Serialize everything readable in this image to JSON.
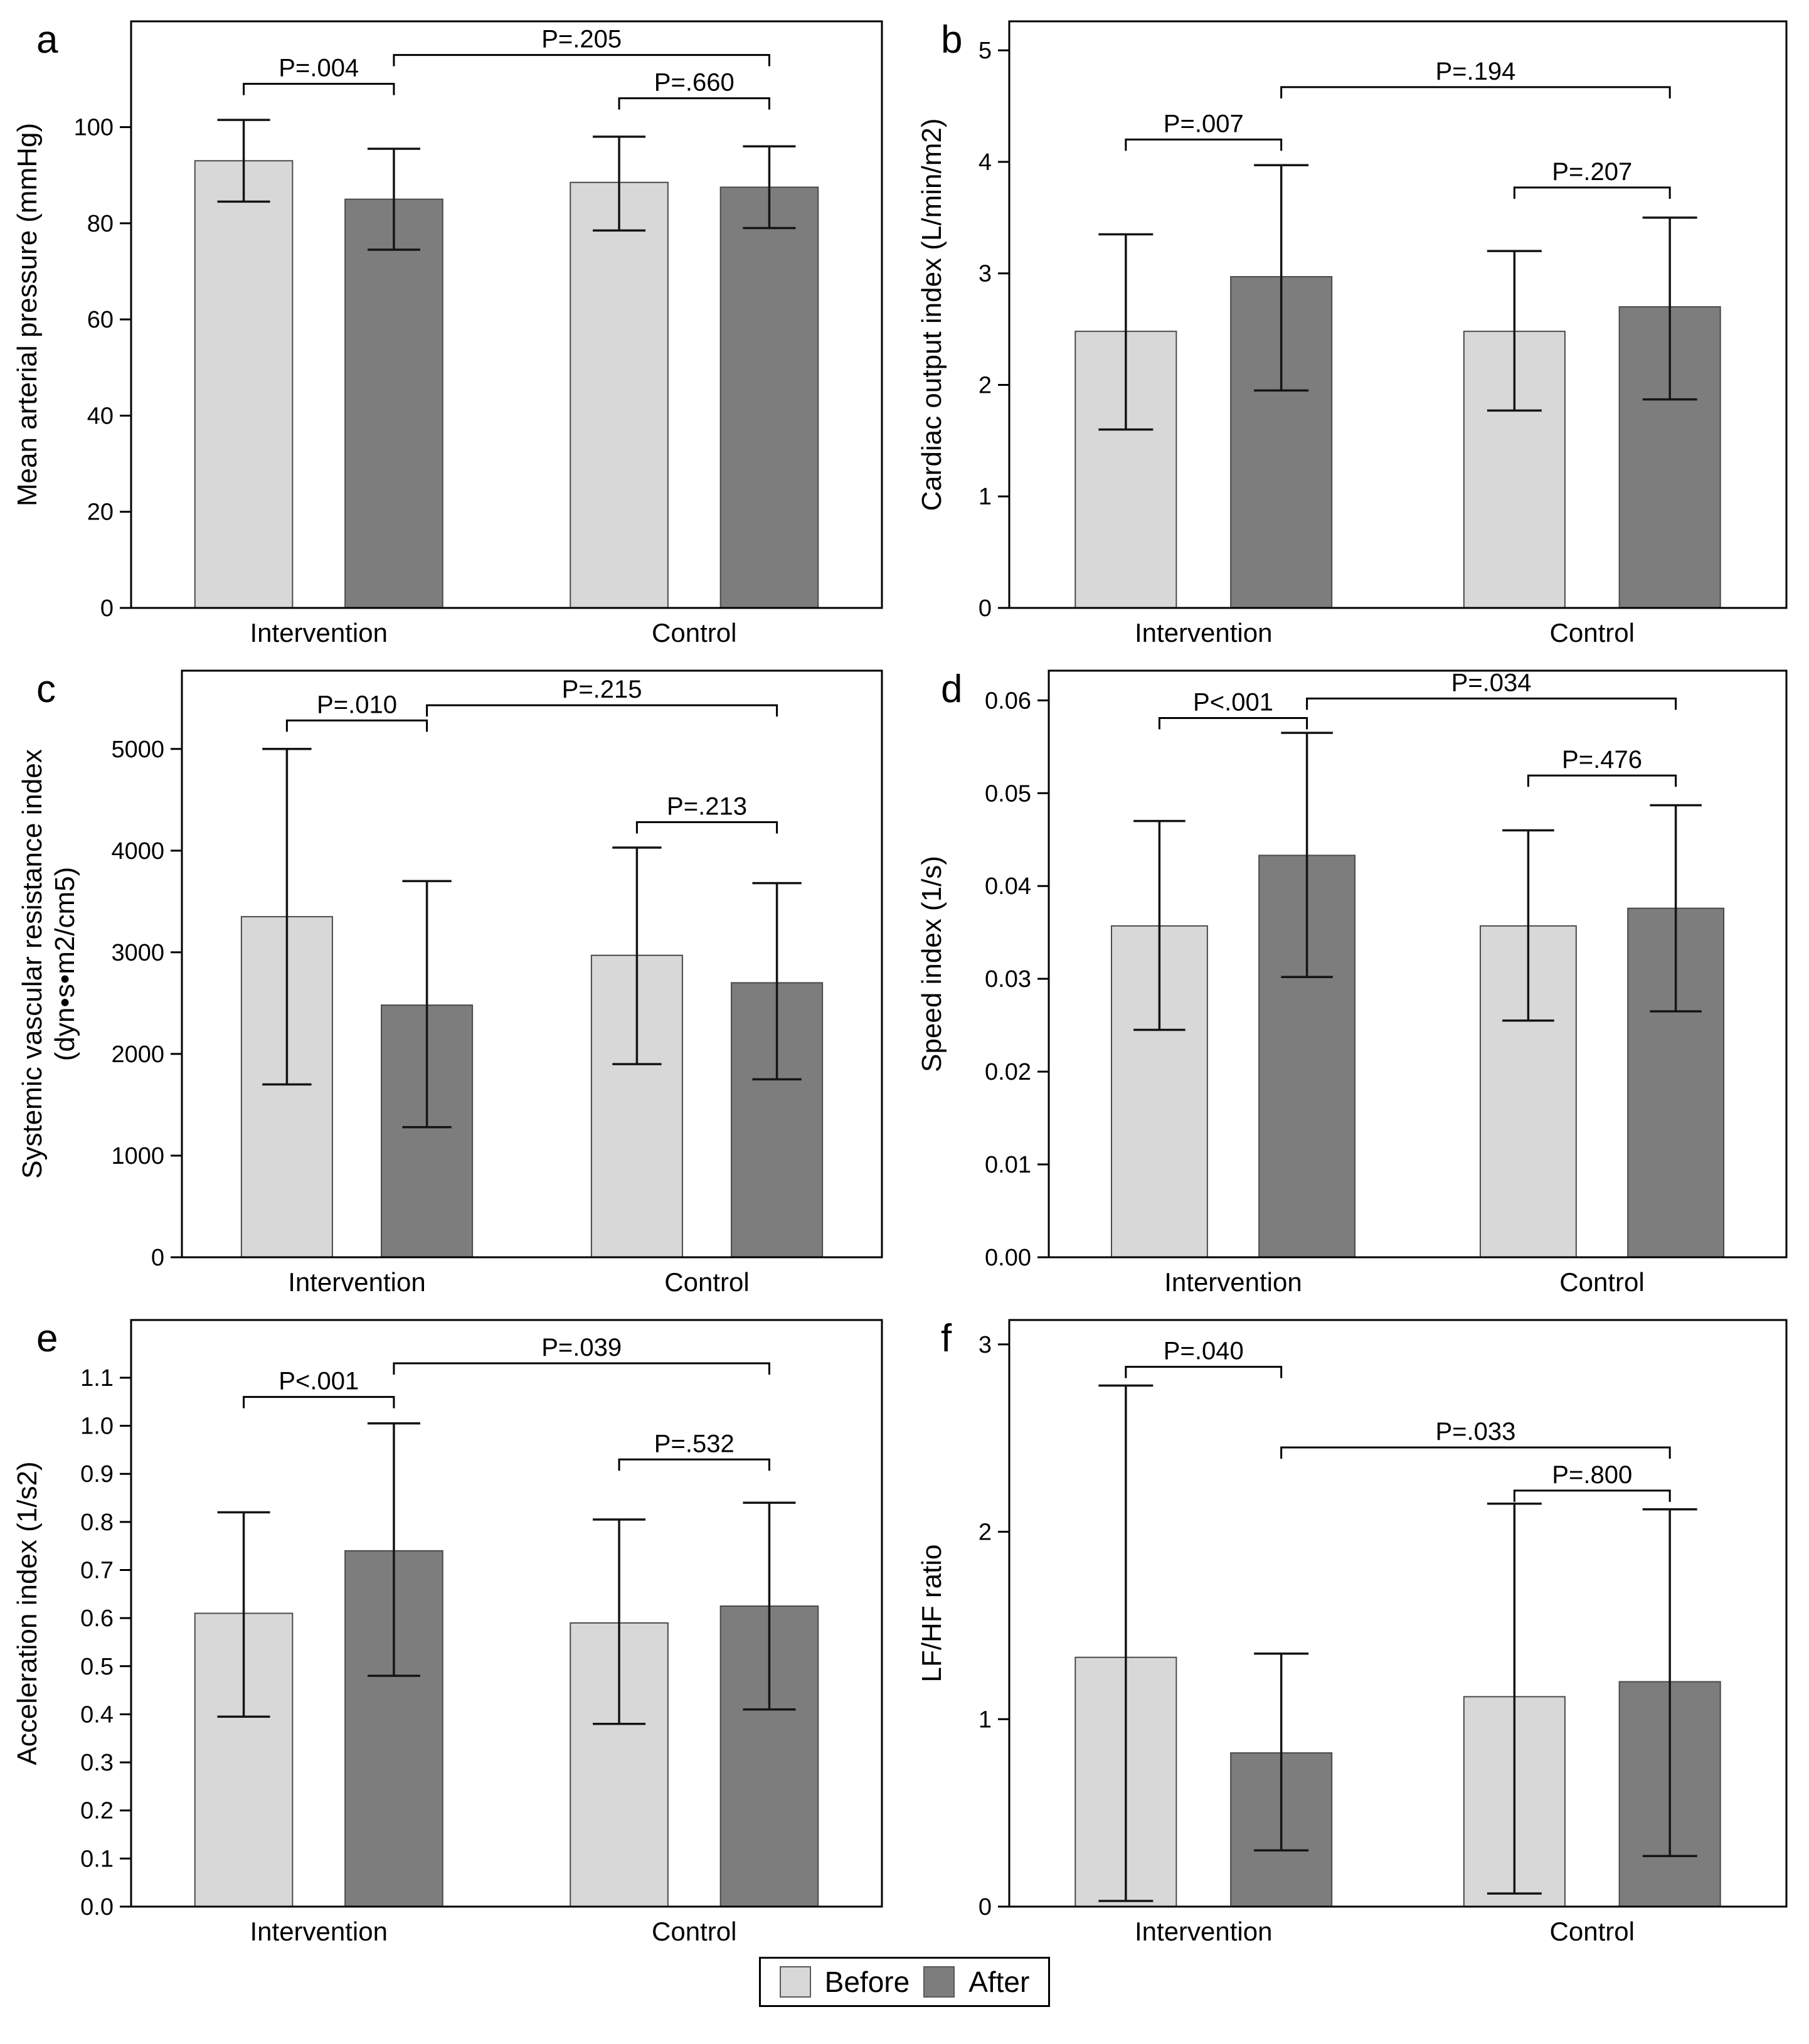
{
  "colors": {
    "before": "#d8d8d8",
    "after": "#7d7d7d",
    "axis": "#000000",
    "error_bar": "#141414"
  },
  "legend": {
    "before_label": "Before",
    "after_label": "After"
  },
  "chart_data": {
    "type": "bar",
    "description": "Six grouped bar charts (a-f) with SD error bars comparing Before vs After measurements in Intervention and Control groups, with P-value comparison brackets",
    "legend_position": "bottom-center",
    "panels": [
      {
        "id": "a",
        "letter": "a",
        "ylabel": "Mean arterial pressure (mmHg)",
        "ylabel2": null,
        "categories": [
          "Intervention",
          "Control"
        ],
        "ytick_values": [
          0,
          20,
          40,
          60,
          80,
          100
        ],
        "ytick_labels": [
          "0",
          "20",
          "40",
          "60",
          "80",
          "100"
        ],
        "ymax": 122,
        "series": [
          {
            "name": "Before",
            "values": [
              93,
              88.5
            ],
            "err_low": [
              84.5,
              78.5
            ],
            "err_high": [
              101.5,
              98
            ]
          },
          {
            "name": "After",
            "values": [
              85,
              87.5
            ],
            "err_low": [
              74.5,
              79
            ],
            "err_high": [
              95.5,
              96
            ]
          }
        ],
        "brackets": [
          {
            "label": "P=.004",
            "x1": 0,
            "x2": 1,
            "y": 109
          },
          {
            "label": "P=.205",
            "x1": 1,
            "x2": 3,
            "y": 115
          },
          {
            "label": "P=.660",
            "x1": 2,
            "x2": 3,
            "y": 106
          }
        ]
      },
      {
        "id": "b",
        "letter": "b",
        "ylabel": "Cardiac output index (L/min/m2)",
        "ylabel2": null,
        "categories": [
          "Intervention",
          "Control"
        ],
        "ytick_values": [
          0,
          1,
          2,
          3,
          4,
          5
        ],
        "ytick_labels": [
          "0",
          "1",
          "2",
          "3",
          "4",
          "5"
        ],
        "ymax": 5.26,
        "series": [
          {
            "name": "Before",
            "values": [
              2.48,
              2.48
            ],
            "err_low": [
              1.6,
              1.77
            ],
            "err_high": [
              3.35,
              3.2
            ]
          },
          {
            "name": "After",
            "values": [
              2.97,
              2.7
            ],
            "err_low": [
              1.95,
              1.87
            ],
            "err_high": [
              3.97,
              3.5
            ]
          }
        ],
        "brackets": [
          {
            "label": "P=.007",
            "x1": 0,
            "x2": 1,
            "y": 4.2
          },
          {
            "label": "P=.194",
            "x1": 1,
            "x2": 3,
            "y": 4.67
          },
          {
            "label": "P=.207",
            "x1": 2,
            "x2": 3,
            "y": 3.77
          }
        ]
      },
      {
        "id": "c",
        "letter": "c",
        "ylabel": "Systemic vascular resistance index",
        "ylabel2": "(dyn•s•m2/cm5)",
        "categories": [
          "Intervention",
          "Control"
        ],
        "ytick_values": [
          0,
          1000,
          2000,
          3000,
          4000,
          5000
        ],
        "ytick_labels": [
          "0",
          "1000",
          "2000",
          "3000",
          "4000",
          "5000"
        ],
        "ymax": 5770,
        "series": [
          {
            "name": "Before",
            "values": [
              3350,
              2970
            ],
            "err_low": [
              1700,
              1900
            ],
            "err_high": [
              5000,
              4030
            ]
          },
          {
            "name": "After",
            "values": [
              2480,
              2700
            ],
            "err_low": [
              1280,
              1750
            ],
            "err_high": [
              3700,
              3680
            ]
          }
        ],
        "brackets": [
          {
            "label": "P=.010",
            "x1": 0,
            "x2": 1,
            "y": 5280
          },
          {
            "label": "P=.215",
            "x1": 1,
            "x2": 3,
            "y": 5430
          },
          {
            "label": "P=.213",
            "x1": 2,
            "x2": 3,
            "y": 4280
          }
        ]
      },
      {
        "id": "d",
        "letter": "d",
        "ylabel": "Speed index (1/s)",
        "ylabel2": null,
        "categories": [
          "Intervention",
          "Control"
        ],
        "ytick_values": [
          0,
          0.01,
          0.02,
          0.03,
          0.04,
          0.05,
          0.06
        ],
        "ytick_labels": [
          "0.00",
          "0.01",
          "0.02",
          "0.03",
          "0.04",
          "0.05",
          "0.06"
        ],
        "ymax": 0.0632,
        "series": [
          {
            "name": "Before",
            "values": [
              0.0357,
              0.0357
            ],
            "err_low": [
              0.0245,
              0.0255
            ],
            "err_high": [
              0.047,
              0.046
            ]
          },
          {
            "name": "After",
            "values": [
              0.0433,
              0.0376
            ],
            "err_low": [
              0.0302,
              0.0265
            ],
            "err_high": [
              0.0565,
              0.0487
            ]
          }
        ],
        "brackets": [
          {
            "label": "P<.001",
            "x1": 0,
            "x2": 1,
            "y": 0.0581
          },
          {
            "label": "P=.034",
            "x1": 1,
            "x2": 3,
            "y": 0.0602
          },
          {
            "label": "P=.476",
            "x1": 2,
            "x2": 3,
            "y": 0.0519
          }
        ]
      },
      {
        "id": "e",
        "letter": "e",
        "ylabel": "Acceleration index (1/s2)",
        "ylabel2": null,
        "categories": [
          "Intervention",
          "Control"
        ],
        "ytick_values": [
          0,
          0.1,
          0.2,
          0.3,
          0.4,
          0.5,
          0.6,
          0.7,
          0.8,
          0.9,
          1.0,
          1.1
        ],
        "ytick_labels": [
          "0.0",
          "0.1",
          "0.2",
          "0.3",
          "0.4",
          "0.5",
          "0.6",
          "0.7",
          "0.8",
          "0.9",
          "1.0",
          "1.1"
        ],
        "ymax": 1.22,
        "series": [
          {
            "name": "Before",
            "values": [
              0.61,
              0.59
            ],
            "err_low": [
              0.395,
              0.38
            ],
            "err_high": [
              0.82,
              0.805
            ]
          },
          {
            "name": "After",
            "values": [
              0.74,
              0.625
            ],
            "err_low": [
              0.48,
              0.41
            ],
            "err_high": [
              1.005,
              0.84
            ]
          }
        ],
        "brackets": [
          {
            "label": "P<.001",
            "x1": 0,
            "x2": 1,
            "y": 1.06
          },
          {
            "label": "P=.039",
            "x1": 1,
            "x2": 3,
            "y": 1.13
          },
          {
            "label": "P=.532",
            "x1": 2,
            "x2": 3,
            "y": 0.93
          }
        ]
      },
      {
        "id": "f",
        "letter": "f",
        "ylabel": "LF/HF ratio",
        "ylabel2": null,
        "categories": [
          "Intervention",
          "Control"
        ],
        "ytick_values": [
          0,
          1,
          2,
          3
        ],
        "ytick_labels": [
          "0",
          "1",
          "2",
          "3"
        ],
        "ymax": 3.13,
        "series": [
          {
            "name": "Before",
            "values": [
              1.33,
              1.12
            ],
            "err_low": [
              0.03,
              0.07
            ],
            "err_high": [
              2.78,
              2.15
            ]
          },
          {
            "name": "After",
            "values": [
              0.82,
              1.2
            ],
            "err_low": [
              0.3,
              0.27
            ],
            "err_high": [
              1.35,
              2.12
            ]
          }
        ],
        "brackets": [
          {
            "label": "P=.040",
            "x1": 0,
            "x2": 1,
            "y": 2.88
          },
          {
            "label": "P=.033",
            "x1": 1,
            "x2": 3,
            "y": 2.45
          },
          {
            "label": "P=.800",
            "x1": 2,
            "x2": 3,
            "y": 2.22
          }
        ]
      }
    ]
  }
}
